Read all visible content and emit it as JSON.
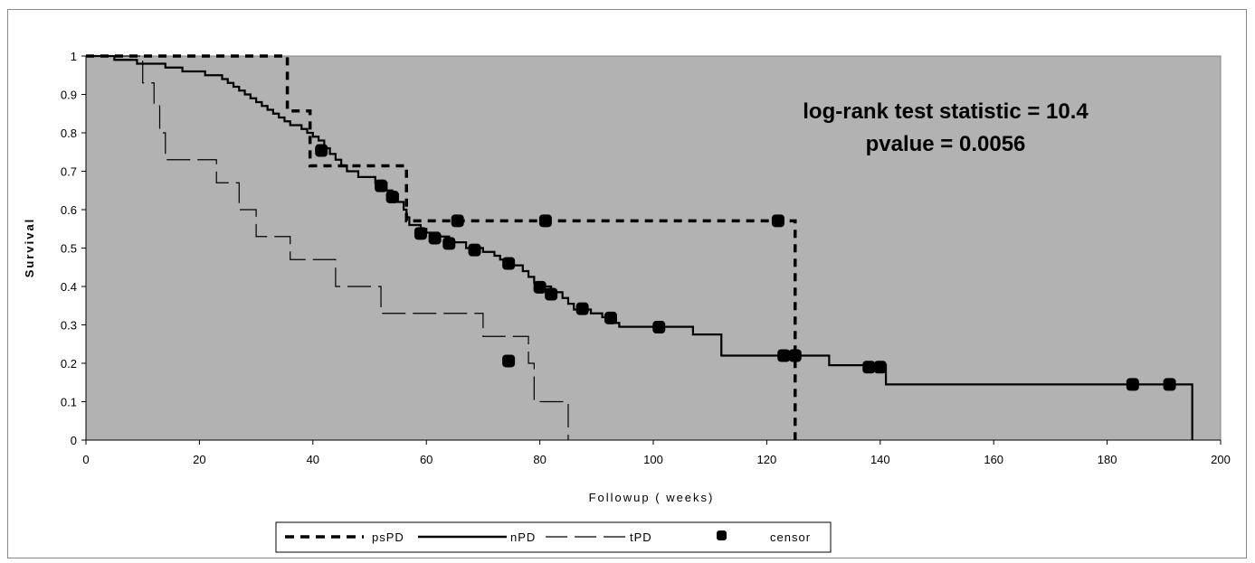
{
  "chart_data": {
    "type": "line",
    "title": "",
    "xlabel": "Followup ( weeks)",
    "ylabel": "Survival",
    "xlim": [
      0,
      200
    ],
    "ylim": [
      0,
      1
    ],
    "xticks": [
      "0",
      "20",
      "40",
      "60",
      "80",
      "100",
      "120",
      "140",
      "160",
      "180",
      "200"
    ],
    "yticks": [
      "0",
      "0.1",
      "0.2",
      "0.3",
      "0.4",
      "0.5",
      "0.6",
      "0.7",
      "0.8",
      "0.9",
      "1"
    ],
    "grid": false,
    "background_color": "#b2b2b2",
    "annotations": [
      "log-rank test statistic = 10.4",
      "pvalue = 0.0056"
    ],
    "legend": {
      "placement": "bottom",
      "entries": [
        "psPD",
        "nPD",
        "tPD",
        "censor"
      ]
    },
    "series": [
      {
        "name": "psPD",
        "style": "dashed-thick",
        "steps": [
          [
            0,
            1
          ],
          [
            35.5,
            0.857
          ],
          [
            39.5,
            0.714
          ],
          [
            56.5,
            0.571
          ],
          [
            125,
            0
          ]
        ]
      },
      {
        "name": "nPD",
        "style": "solid",
        "steps": [
          [
            0,
            1
          ],
          [
            5,
            0.99
          ],
          [
            9,
            0.98
          ],
          [
            14,
            0.97
          ],
          [
            17,
            0.96
          ],
          [
            21,
            0.95
          ],
          [
            24,
            0.94
          ],
          [
            25,
            0.93
          ],
          [
            26,
            0.92
          ],
          [
            27,
            0.91
          ],
          [
            28,
            0.9
          ],
          [
            29,
            0.89
          ],
          [
            30,
            0.88
          ],
          [
            31,
            0.87
          ],
          [
            32,
            0.86
          ],
          [
            33,
            0.85
          ],
          [
            34,
            0.84
          ],
          [
            35,
            0.83
          ],
          [
            36,
            0.82
          ],
          [
            38,
            0.81
          ],
          [
            39,
            0.8
          ],
          [
            40,
            0.79
          ],
          [
            41,
            0.78
          ],
          [
            42,
            0.76
          ],
          [
            43,
            0.745
          ],
          [
            44,
            0.73
          ],
          [
            45,
            0.715
          ],
          [
            46,
            0.7
          ],
          [
            48,
            0.685
          ],
          [
            51,
            0.67
          ],
          [
            53,
            0.65
          ],
          [
            54,
            0.64
          ],
          [
            55,
            0.62
          ],
          [
            56,
            0.6
          ],
          [
            56.5,
            0.58
          ],
          [
            57,
            0.56
          ],
          [
            59,
            0.55
          ],
          [
            60,
            0.54
          ],
          [
            62,
            0.53
          ],
          [
            64,
            0.515
          ],
          [
            67,
            0.5
          ],
          [
            70,
            0.49
          ],
          [
            72,
            0.48
          ],
          [
            73,
            0.47
          ],
          [
            75,
            0.455
          ],
          [
            77,
            0.44
          ],
          [
            78,
            0.425
          ],
          [
            79,
            0.41
          ],
          [
            80,
            0.4
          ],
          [
            82,
            0.385
          ],
          [
            84,
            0.37
          ],
          [
            85,
            0.355
          ],
          [
            86,
            0.34
          ],
          [
            89,
            0.33
          ],
          [
            91,
            0.32
          ],
          [
            93,
            0.305
          ],
          [
            94,
            0.295
          ],
          [
            107,
            0.275
          ],
          [
            112,
            0.22
          ],
          [
            131,
            0.195
          ],
          [
            141,
            0.145
          ],
          [
            195,
            0
          ]
        ]
      },
      {
        "name": "tPD",
        "style": "long-dash-thin",
        "steps": [
          [
            0,
            1
          ],
          [
            10,
            0.93
          ],
          [
            12,
            0.87
          ],
          [
            13,
            0.8
          ],
          [
            14,
            0.73
          ],
          [
            23,
            0.67
          ],
          [
            27,
            0.6
          ],
          [
            30,
            0.53
          ],
          [
            36,
            0.47
          ],
          [
            44,
            0.4
          ],
          [
            52,
            0.33
          ],
          [
            70,
            0.27
          ],
          [
            78,
            0.2
          ],
          [
            79,
            0.1
          ],
          [
            85,
            0
          ]
        ]
      },
      {
        "name": "censor",
        "style": "marker",
        "points": [
          [
            41.5,
            0.754
          ],
          [
            52,
            0.662
          ],
          [
            54,
            0.633
          ],
          [
            59,
            0.538
          ],
          [
            61.5,
            0.526
          ],
          [
            64,
            0.512
          ],
          [
            68.5,
            0.495
          ],
          [
            74.5,
            0.46
          ],
          [
            80,
            0.398
          ],
          [
            82,
            0.38
          ],
          [
            87.5,
            0.342
          ],
          [
            92.5,
            0.318
          ],
          [
            101,
            0.294
          ],
          [
            65.5,
            0.571
          ],
          [
            81,
            0.571
          ],
          [
            122,
            0.571
          ],
          [
            74.5,
            0.206
          ],
          [
            123,
            0.22
          ],
          [
            125,
            0.22
          ],
          [
            138,
            0.19
          ],
          [
            140,
            0.19
          ],
          [
            184.5,
            0.145
          ],
          [
            191,
            0.145
          ]
        ]
      }
    ]
  }
}
